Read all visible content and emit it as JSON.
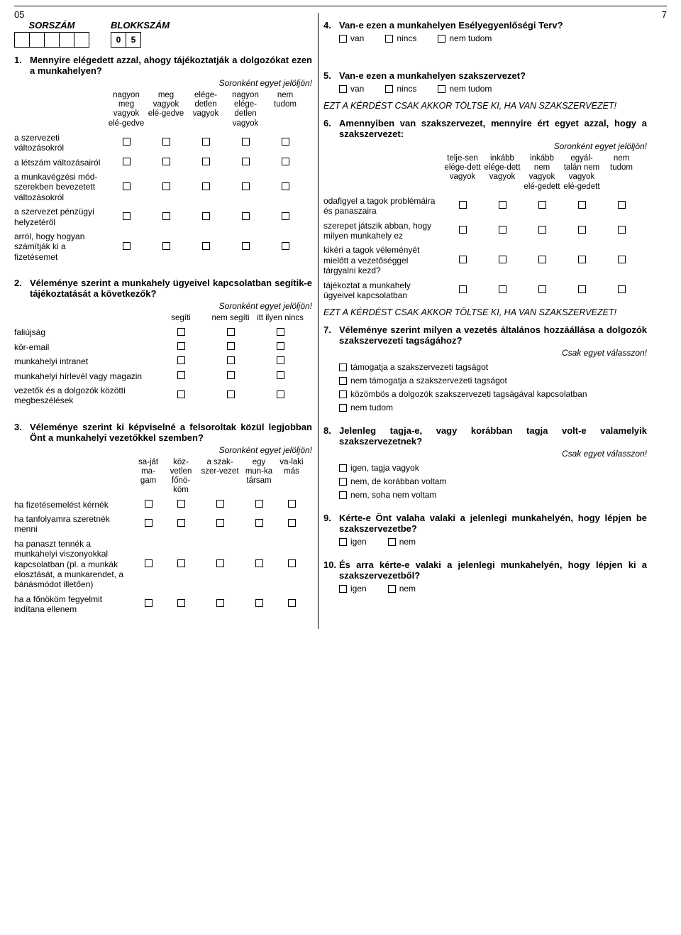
{
  "page_top": "05",
  "page_num": "7",
  "sorszam_label": "SORSZÁM",
  "blokkszam_label": "BLOKKSZÁM",
  "blokk_values": [
    "0",
    "5"
  ],
  "q4": {
    "num": "4.",
    "text": "Van-e ezen a munkahelyen Esélyegyenlőségi Terv?",
    "opts": [
      "van",
      "nincs",
      "nem tudom"
    ]
  },
  "q1": {
    "num": "1.",
    "text": "Mennyire elégedett azzal, ahogy tájékoztatják a dolgozókat ezen a munkahelyen?",
    "soron": "Soronként egyet jelöljön!",
    "headers": [
      "nagyon meg vagyok elé-gedve",
      "meg vagyok elé-gedve",
      "elége-detlen vagyok",
      "nagyon elége-detlen vagyok",
      "nem tudom"
    ],
    "rows": [
      "a szervezeti változásokról",
      "a létszám változásairól",
      "a munkavégzési mód-szerekben bevezetett változásokról",
      "a szervezet pénzügyi helyzetéről",
      "arról, hogy hogyan számítják ki a fizetésemet"
    ]
  },
  "q2": {
    "num": "2.",
    "text": "Véleménye szerint a munkahely ügyeivel kapcsolatban segítik-e tájékoztatását a következők?",
    "soron": "Soronként egyet jelöljön!",
    "headers": [
      "segíti",
      "nem segíti",
      "itt ilyen nincs"
    ],
    "rows": [
      "faliújság",
      "kör-email",
      "munkahelyi intranet",
      "munkahelyi hírlevél vagy magazin",
      "vezetők és a dolgozók közötti megbeszélések"
    ]
  },
  "q3": {
    "num": "3.",
    "text": "Véleménye szerint ki képviselné a felsoroltak közül legjobban Önt a munkahelyi vezetőkkel szemben?",
    "soron": "Soronként egyet jelöljön!",
    "headers": [
      "sa-ját ma-gam",
      "köz-vetlen főnö-köm",
      "a szak-szer-vezet",
      "egy mun-ka társam",
      "va-laki más"
    ],
    "rows": [
      "ha fizetésemelést kérnék",
      "ha tanfolyamra szeretnék menni",
      "ha panaszt tennék a munkahelyi viszonyokkal kapcsolatban (pl. a munkák elosztását, a munkarendet, a bánásmódot illetően)",
      "ha a főnököm fegyelmit indítana ellenem"
    ]
  },
  "q5": {
    "num": "5.",
    "text": "Van-e ezen a munkahelyen szakszervezet?",
    "opts": [
      "van",
      "nincs",
      "nem tudom"
    ]
  },
  "note1": "EZT A KÉRDÉST CSAK AKKOR TÖLTSE KI, HA VAN SZAKSZERVEZET!",
  "q6": {
    "num": "6.",
    "text": "Amennyiben van szakszervezet, mennyire ért egyet azzal, hogy a szakszervezet:",
    "soron": "Soronként egyet jelöljön!",
    "headers": [
      "telje-sen elége-dett vagyok",
      "inkább elége-dett vagyok",
      "inkább nem vagyok elé-gedett",
      "egyál-talán nem vagyok elé-gedett",
      "nem tudom"
    ],
    "rows": [
      "odafigyel a tagok problémáira és panaszaira",
      "szerepet játszik abban, hogy milyen munkahely ez",
      "kikéri a tagok véleményét mielőtt a vezetőséggel tárgyalni kezd?",
      "tájékoztat a munkahely ügyeivel kapcsolatban"
    ]
  },
  "note2": "EZT A KÉRDÉST CSAK AKKOR TÖLTSE KI, HA VAN SZAKSZERVEZET!",
  "q7": {
    "num": "7.",
    "text": "Véleménye szerint milyen a vezetés általános hozzáállása a dolgozók szakszervezeti tagságához?",
    "instr": "Csak egyet válasszon!",
    "opts": [
      "támogatja a szakszervezeti tagságot",
      "nem támogatja a szakszervezeti tagságot",
      "közömbös a dolgozók szakszervezeti tagságával kapcsolatban",
      "nem tudom"
    ]
  },
  "q8": {
    "num": "8.",
    "text": "Jelenleg tagja-e, vagy korábban tagja volt-e valamelyik szakszervezetnek?",
    "instr": "Csak egyet válasszon!",
    "opts": [
      "igen, tagja vagyok",
      "nem, de korábban voltam",
      "nem, soha nem voltam"
    ]
  },
  "q9": {
    "num": "9.",
    "text": "Kérte-e Önt valaha valaki a jelenlegi munkahelyén, hogy lépjen be szakszervezetbe?",
    "opts": [
      "igen",
      "nem"
    ]
  },
  "q10": {
    "num": "10.",
    "text": "És arra kérte-e valaki a jelenlegi munkahelyén, hogy lépjen ki a szakszervezetből?",
    "opts": [
      "igen",
      "nem"
    ]
  }
}
